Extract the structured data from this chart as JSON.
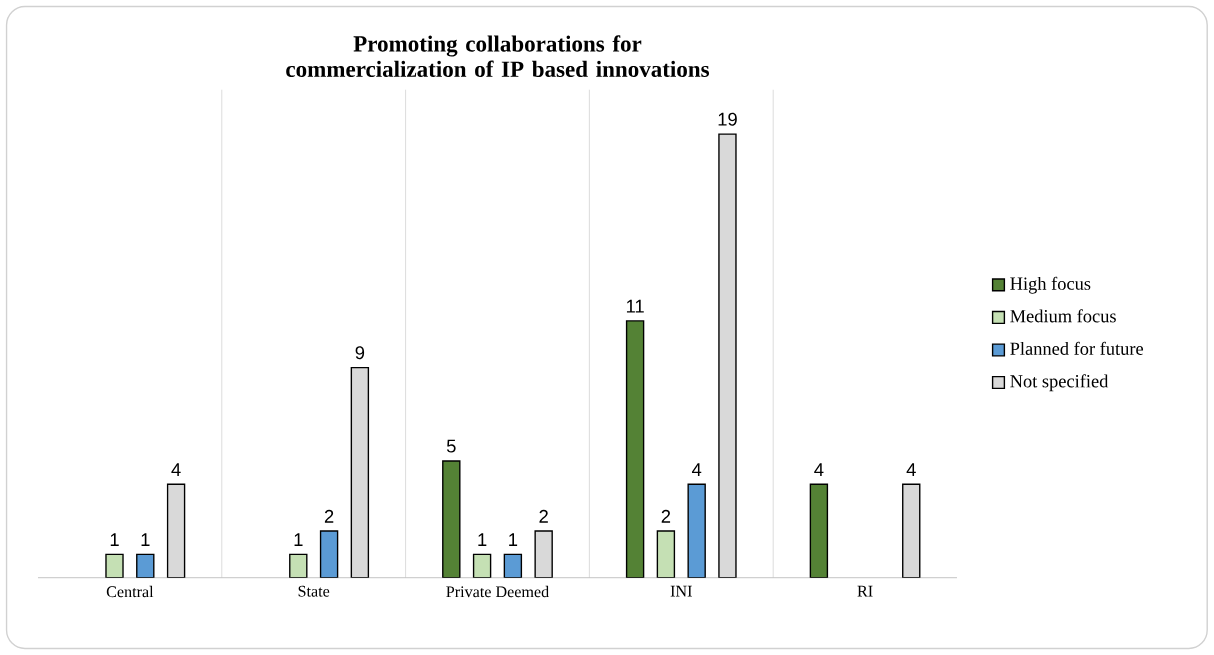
{
  "chart_data": {
    "type": "bar",
    "title": "Promoting collaborations for commercialization of IP based innovations",
    "categories": [
      "Central",
      "State",
      "Private Deemed",
      "INI",
      "RI"
    ],
    "series": [
      {
        "name": "High focus",
        "color": "#548235",
        "values": [
          null,
          null,
          5,
          11,
          4
        ]
      },
      {
        "name": "Medium focus",
        "color": "#c5e0b4",
        "values": [
          1,
          1,
          1,
          2,
          null
        ]
      },
      {
        "name": "Planned for future",
        "color": "#5b9bd5",
        "values": [
          1,
          2,
          1,
          4,
          null
        ]
      },
      {
        "name": "Not specified",
        "color": "#d9d9d9",
        "values": [
          4,
          9,
          2,
          19,
          4
        ]
      }
    ],
    "data_labels": true,
    "grid": "x",
    "legend": "right"
  }
}
